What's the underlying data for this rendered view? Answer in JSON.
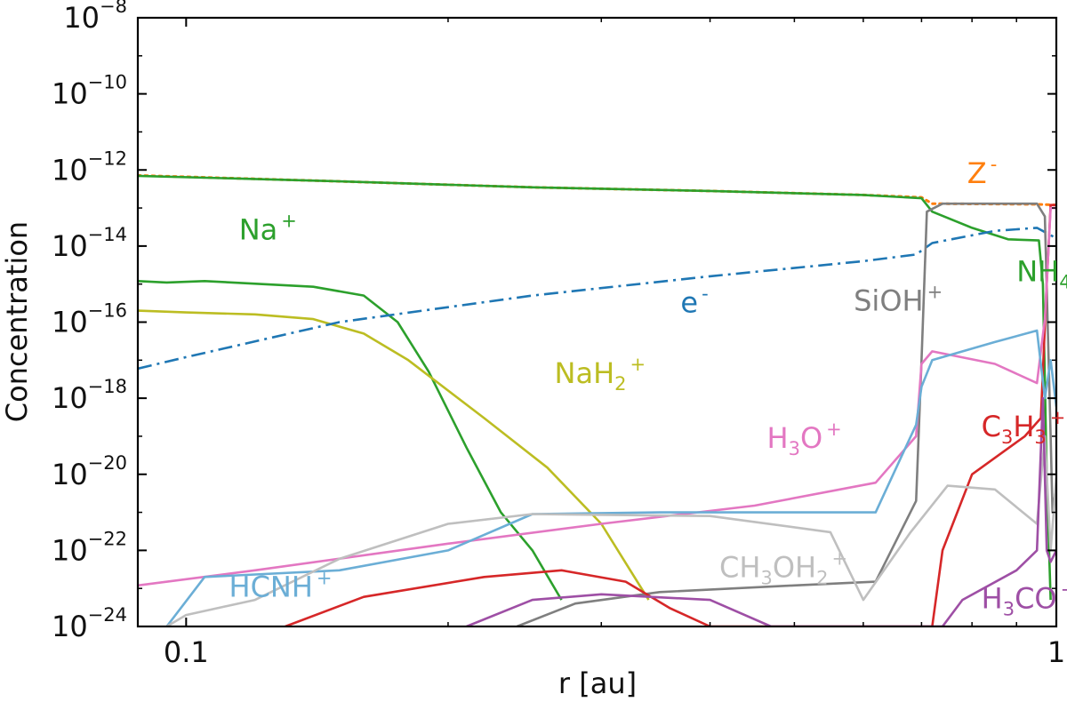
{
  "chart_data": {
    "type": "line",
    "xlabel": "r [au]",
    "ylabel": "Concentration",
    "x_scale": "log",
    "y_scale": "log",
    "xlim": [
      0.088,
      1.0
    ],
    "ylim": [
      1e-24,
      1e-08
    ],
    "x_ticks": [
      {
        "value": 0.1,
        "label": "0.1"
      },
      {
        "value": 1,
        "label": "1"
      }
    ],
    "y_ticks": [
      {
        "value": 1e-24,
        "base": "10",
        "exp": "−24"
      },
      {
        "value": 1e-22,
        "base": "10",
        "exp": "−22"
      },
      {
        "value": 1e-20,
        "base": "10",
        "exp": "−20"
      },
      {
        "value": 1e-18,
        "base": "10",
        "exp": "−18"
      },
      {
        "value": 1e-16,
        "base": "10",
        "exp": "−16"
      },
      {
        "value": 1e-14,
        "base": "10",
        "exp": "−14"
      },
      {
        "value": 1e-12,
        "base": "10",
        "exp": "−12"
      },
      {
        "value": 1e-10,
        "base": "10",
        "exp": "−10"
      },
      {
        "value": 1e-08,
        "base": "10",
        "exp": "−8"
      }
    ],
    "grid": false,
    "series": [
      {
        "key": "z",
        "color": "#ff7f0e",
        "dash": "dotted",
        "label": {
          "text": "Z",
          "sup": "-",
          "at": [
            0.79,
            4.5e-13
          ]
        },
        "points": [
          [
            0.088,
            7.2e-13
          ],
          [
            0.15,
            5e-13
          ],
          [
            0.25,
            3.5e-13
          ],
          [
            0.4,
            2.8e-13
          ],
          [
            0.6,
            2.2e-13
          ],
          [
            0.7,
            1.9e-13
          ],
          [
            0.72,
            1.3e-13
          ],
          [
            0.95,
            1.25e-13
          ],
          [
            1.0,
            1.2e-13
          ]
        ]
      },
      {
        "key": "na",
        "color": "#2ca02c",
        "dash": "solid",
        "label": {
          "text": "Na",
          "sup": "+",
          "at": [
            0.115,
            1.5e-14
          ]
        },
        "points": [
          [
            0.088,
            7e-13
          ],
          [
            0.15,
            5e-13
          ],
          [
            0.25,
            3.5e-13
          ],
          [
            0.4,
            2.8e-13
          ],
          [
            0.6,
            2.2e-13
          ],
          [
            0.7,
            1.8e-13
          ],
          [
            0.72,
            8e-14
          ],
          [
            0.8,
            3e-14
          ],
          [
            0.88,
            1.5e-14
          ],
          [
            0.955,
            1.4e-14
          ],
          [
            0.965,
            1e-15
          ],
          [
            0.975,
            1e-20
          ],
          [
            0.985,
            5e-24
          ]
        ]
      },
      {
        "key": "nh4",
        "color": "#2ca02c",
        "dash": "solid",
        "label": {
          "text": "NH",
          "sub": "4",
          "sup": "+",
          "at": [
            0.9,
            1.2e-15
          ]
        },
        "points": [
          [
            0.088,
            1.2e-15
          ],
          [
            0.095,
            1.1e-15
          ],
          [
            0.105,
            1.2e-15
          ],
          [
            0.14,
            8.5e-16
          ],
          [
            0.16,
            5e-16
          ],
          [
            0.175,
            1e-16
          ],
          [
            0.19,
            5e-18
          ],
          [
            0.21,
            5e-20
          ],
          [
            0.23,
            1e-21
          ],
          [
            0.25,
            1e-22
          ],
          [
            0.27,
            5e-24
          ]
        ]
      },
      {
        "key": "nah2",
        "color": "#bcbd22",
        "dash": "solid",
        "label": {
          "text": "NaH",
          "sub": "2",
          "sup": "+",
          "at": [
            0.265,
            2.5e-18
          ]
        },
        "points": [
          [
            0.088,
            2e-16
          ],
          [
            0.1,
            1.8e-16
          ],
          [
            0.12,
            1.6e-16
          ],
          [
            0.14,
            1.2e-16
          ],
          [
            0.16,
            5e-17
          ],
          [
            0.18,
            1e-17
          ],
          [
            0.22,
            3e-19
          ],
          [
            0.26,
            1.5e-20
          ],
          [
            0.3,
            5e-22
          ],
          [
            0.34,
            5e-24
          ]
        ]
      },
      {
        "key": "e",
        "color": "#1f77b4",
        "dash": "dashdot",
        "label": {
          "text": "e",
          "sup": "-",
          "at": [
            0.37,
            1.8e-16
          ]
        },
        "points": [
          [
            0.088,
            6e-18
          ],
          [
            0.1,
            1.2e-17
          ],
          [
            0.15,
            1e-16
          ],
          [
            0.25,
            5e-16
          ],
          [
            0.4,
            1.6e-15
          ],
          [
            0.6,
            4e-15
          ],
          [
            0.69,
            6e-15
          ],
          [
            0.72,
            1.2e-14
          ],
          [
            0.85,
            2.5e-14
          ],
          [
            0.95,
            3e-14
          ],
          [
            1.0,
            1.6e-14
          ]
        ]
      },
      {
        "key": "sioh",
        "color": "#7f7f7f",
        "dash": "solid",
        "label": {
          "text": "SiOH",
          "sup": "+",
          "at": [
            0.585,
            2e-16
          ]
        },
        "points": [
          [
            0.24,
            1e-24
          ],
          [
            0.28,
            4e-24
          ],
          [
            0.35,
            8e-24
          ],
          [
            0.5,
            1.2e-23
          ],
          [
            0.62,
            1.5e-23
          ],
          [
            0.69,
            2e-21
          ],
          [
            0.7,
            1e-17
          ],
          [
            0.71,
            8e-14
          ],
          [
            0.74,
            1.3e-13
          ],
          [
            0.95,
            1.3e-13
          ],
          [
            0.97,
            6e-14
          ],
          [
            0.985,
            1e-19
          ],
          [
            0.99,
            1e-21
          ],
          [
            1.0,
            5e-21
          ]
        ]
      },
      {
        "key": "c3h3",
        "color": "#d62728",
        "dash": "solid",
        "label": {
          "text": "C",
          "sub": "3",
          "label2": "H",
          "sub2": "3",
          "sup": "+",
          "at": [
            0.82,
            1e-19
          ]
        },
        "points": [
          [
            0.13,
            1e-24
          ],
          [
            0.16,
            6e-24
          ],
          [
            0.22,
            2e-23
          ],
          [
            0.27,
            3e-23
          ],
          [
            0.32,
            1.5e-23
          ],
          [
            0.36,
            3e-24
          ],
          [
            0.4,
            1e-24
          ],
          [
            0.72,
            1e-24
          ],
          [
            0.74,
            1e-22
          ],
          [
            0.8,
            1e-20
          ],
          [
            0.92,
            1e-19
          ],
          [
            0.96,
            3e-19
          ],
          [
            0.975,
            1e-15
          ],
          [
            0.985,
            1.2e-13
          ],
          [
            1.0,
            1.2e-13
          ]
        ]
      },
      {
        "key": "h3o",
        "color": "#e377c2",
        "dash": "solid",
        "label": {
          "text": "H",
          "sub": "3",
          "label2": "O",
          "sup": "+",
          "at": [
            0.465,
            5e-20
          ]
        },
        "points": [
          [
            0.088,
            1.2e-23
          ],
          [
            0.12,
            3e-23
          ],
          [
            0.2,
            1.5e-22
          ],
          [
            0.3,
            5e-22
          ],
          [
            0.45,
            1.5e-21
          ],
          [
            0.62,
            6e-21
          ],
          [
            0.69,
            1e-19
          ],
          [
            0.7,
            8e-18
          ],
          [
            0.72,
            1.7e-17
          ],
          [
            0.85,
            8e-18
          ],
          [
            0.95,
            2.5e-18
          ],
          [
            0.97,
            1.2e-16
          ],
          [
            0.985,
            1e-13
          ],
          [
            1.0,
            1e-13
          ]
        ]
      },
      {
        "key": "hcnh",
        "color": "#6baed6",
        "dash": "solid",
        "label": {
          "text": "HCNH",
          "sup": "+",
          "at": [
            0.112,
            6e-24
          ]
        },
        "points": [
          [
            0.095,
            1e-24
          ],
          [
            0.105,
            2e-23
          ],
          [
            0.15,
            3e-23
          ],
          [
            0.2,
            1e-22
          ],
          [
            0.25,
            9e-22
          ],
          [
            0.35,
            1e-21
          ],
          [
            0.5,
            1e-21
          ],
          [
            0.62,
            1e-21
          ],
          [
            0.69,
            2e-19
          ],
          [
            0.7,
            2e-18
          ],
          [
            0.72,
            1e-17
          ],
          [
            0.85,
            3e-17
          ],
          [
            0.95,
            6e-17
          ],
          [
            0.97,
            1e-18
          ],
          [
            0.985,
            1e-17
          ],
          [
            1.0,
            6e-19
          ]
        ]
      },
      {
        "key": "ch3oh2",
        "color": "#bfbfbf",
        "dash": "solid",
        "label": {
          "text": "CH",
          "sub": "3",
          "label2": "OH",
          "sub2": "2",
          "sup": "+",
          "at": [
            0.41,
            2e-23
          ]
        },
        "points": [
          [
            0.095,
            1e-24
          ],
          [
            0.1,
            2e-24
          ],
          [
            0.12,
            5e-24
          ],
          [
            0.15,
            6e-23
          ],
          [
            0.2,
            5e-22
          ],
          [
            0.25,
            9e-22
          ],
          [
            0.4,
            8e-22
          ],
          [
            0.55,
            3e-22
          ],
          [
            0.6,
            5e-24
          ],
          [
            0.68,
            3e-22
          ],
          [
            0.75,
            5e-21
          ],
          [
            0.85,
            4e-21
          ],
          [
            0.95,
            5e-22
          ],
          [
            0.97,
            1e-19
          ],
          [
            0.985,
            1e-22
          ],
          [
            1.0,
            8e-21
          ]
        ]
      },
      {
        "key": "h3co",
        "color": "#9e4fa5",
        "dash": "solid",
        "label": {
          "text": "H",
          "sub": "3",
          "label2": "CO",
          "sup": "+",
          "at": [
            0.82,
            3e-24
          ]
        },
        "points": [
          [
            0.21,
            1e-24
          ],
          [
            0.25,
            5e-24
          ],
          [
            0.3,
            7e-24
          ],
          [
            0.4,
            5e-24
          ],
          [
            0.47,
            1e-24
          ],
          [
            0.74,
            1e-24
          ],
          [
            0.78,
            5e-24
          ],
          [
            0.9,
            3e-23
          ],
          [
            0.95,
            1e-22
          ],
          [
            0.965,
            1e-18
          ],
          [
            0.975,
            1e-22
          ],
          [
            0.985,
            5e-23
          ],
          [
            1.0,
            1e-22
          ]
        ]
      }
    ]
  }
}
